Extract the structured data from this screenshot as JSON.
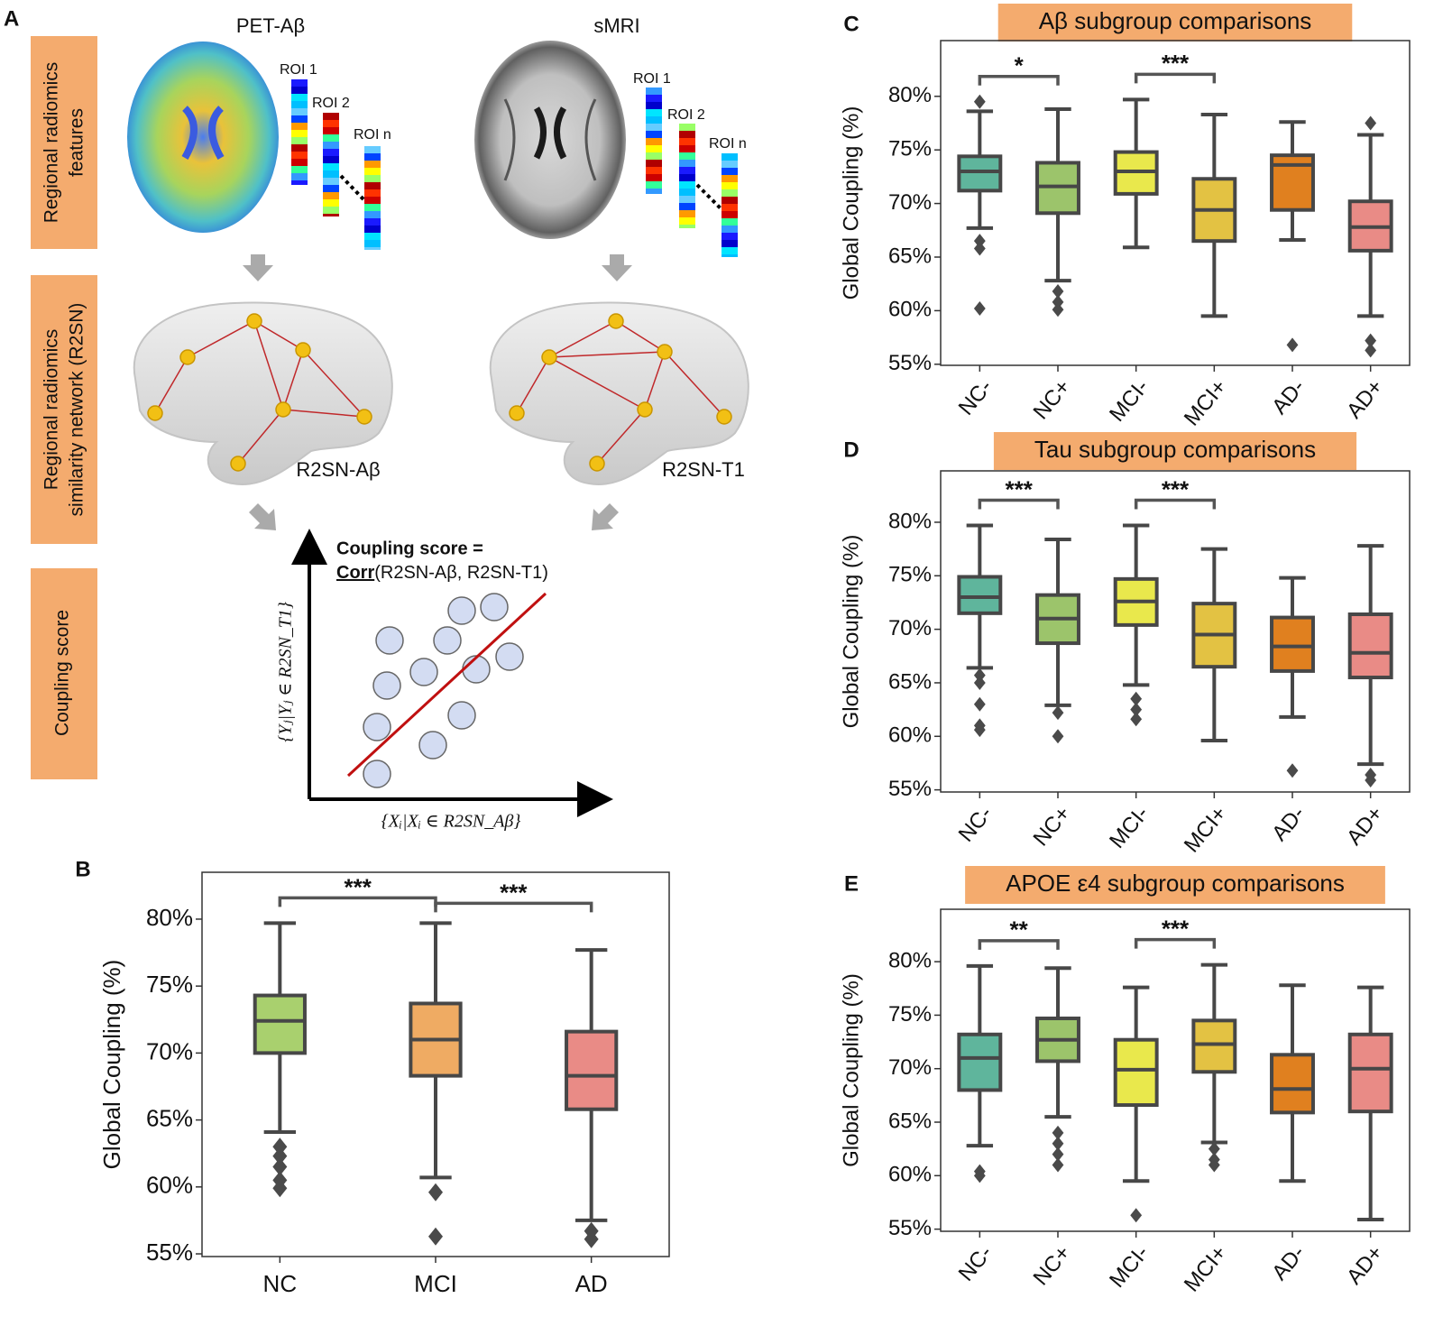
{
  "panel_a": {
    "letter": "A",
    "row_labels": [
      [
        "Regional radiomics",
        "features"
      ],
      [
        "Regional radiomics",
        "similarity network (R2SN)"
      ],
      [
        "Coupling score"
      ]
    ],
    "modalities": [
      "PET-Aβ",
      "sMRI"
    ],
    "roi_labels": [
      "ROI 1",
      "ROI 2",
      "ROI n"
    ],
    "networks": [
      "R2SN-Aβ",
      "R2SN-T1"
    ],
    "formula_title": "Coupling score =",
    "formula_name": "Corr",
    "formula_args": "(R2SN-Aβ, R2SN-T1)",
    "y_axis_label": "{Yⱼ|Yⱼ ∈ R2SN_T1}",
    "x_axis_label": "{Xᵢ|Xᵢ ∈ R2SN_Aβ}"
  },
  "chart_data": [
    {
      "type": "box",
      "panel": "B",
      "ylabel": "Global Coupling (%)",
      "categories": [
        "NC",
        "MCI",
        "AD"
      ],
      "colors": [
        "#a9d06e",
        "#efab63",
        "#e98b86"
      ],
      "boxes": [
        {
          "low": 64.1,
          "q1": 70.0,
          "median": 72.4,
          "q3": 74.3,
          "high": 79.7,
          "outliers": [
            63.0,
            62.3,
            61.5,
            60.5,
            59.9
          ]
        },
        {
          "low": 60.7,
          "q1": 68.3,
          "median": 71.0,
          "q3": 73.7,
          "high": 79.7,
          "outliers": [
            59.6,
            56.3
          ]
        },
        {
          "low": 57.5,
          "q1": 65.8,
          "median": 68.3,
          "q3": 71.6,
          "high": 77.7,
          "outliers": [
            56.7,
            56.1
          ]
        }
      ],
      "significance": [
        {
          "between": [
            "NC",
            "MCI"
          ],
          "label": "***"
        },
        {
          "between": [
            "MCI",
            "AD"
          ],
          "label": "***"
        }
      ],
      "ylim": [
        54.8,
        83.5
      ],
      "yticks": [
        {
          "value": 55,
          "label": "55%"
        },
        {
          "value": 60,
          "label": "60%"
        },
        {
          "value": 65,
          "label": "65%"
        },
        {
          "value": 70,
          "label": "70%"
        },
        {
          "value": 75,
          "label": "75%"
        },
        {
          "value": 80,
          "label": "80%"
        }
      ]
    },
    {
      "type": "box",
      "panel": "C",
      "title": "Aβ subgroup comparisons",
      "ylabel": "Global Coupling (%)",
      "categories": [
        "NC-",
        "NC+",
        "MCI-",
        "MCI+",
        "AD-",
        "AD+"
      ],
      "colors": [
        "#5fb59c",
        "#9cc46b",
        "#e9e84c",
        "#e3c243",
        "#e0801f",
        "#e98b86"
      ],
      "boxes": [
        {
          "low": 67.7,
          "q1": 71.2,
          "median": 73.0,
          "q3": 74.4,
          "high": 78.6,
          "outliers": [
            79.5,
            66.5,
            65.8,
            60.2
          ]
        },
        {
          "low": 62.8,
          "q1": 69.1,
          "median": 71.6,
          "q3": 73.8,
          "high": 78.8,
          "outliers": [
            61.8,
            60.8,
            60.1
          ]
        },
        {
          "low": 65.9,
          "q1": 70.9,
          "median": 73.0,
          "q3": 74.8,
          "high": 79.7,
          "outliers": []
        },
        {
          "low": 59.5,
          "q1": 66.5,
          "median": 69.4,
          "q3": 72.3,
          "high": 78.3,
          "outliers": []
        },
        {
          "low": 66.6,
          "q1": 69.4,
          "median": 73.6,
          "q3": 74.5,
          "high": 77.6,
          "outliers": [
            56.8
          ]
        },
        {
          "low": 59.5,
          "q1": 65.6,
          "median": 67.8,
          "q3": 70.2,
          "high": 76.4,
          "outliers": [
            77.5,
            57.2,
            56.3
          ]
        }
      ],
      "significance": [
        {
          "between": [
            "NC-",
            "NC+"
          ],
          "label": "*"
        },
        {
          "between": [
            "MCI-",
            "MCI+"
          ],
          "label": "***"
        }
      ],
      "ylim": [
        54.9,
        85.2
      ],
      "yticks": [
        {
          "value": 55,
          "label": "55%"
        },
        {
          "value": 60,
          "label": "60%"
        },
        {
          "value": 65,
          "label": "65%"
        },
        {
          "value": 70,
          "label": "70%"
        },
        {
          "value": 75,
          "label": "75%"
        },
        {
          "value": 80,
          "label": "80%"
        }
      ]
    },
    {
      "type": "box",
      "panel": "D",
      "title": "Tau subgroup comparisons",
      "ylabel": "Global Coupling (%)",
      "categories": [
        "NC-",
        "NC+",
        "MCI-",
        "MCI+",
        "AD-",
        "AD+"
      ],
      "colors": [
        "#5fb59c",
        "#9cc46b",
        "#e9e84c",
        "#e3c243",
        "#e0801f",
        "#e98b86"
      ],
      "boxes": [
        {
          "low": 66.4,
          "q1": 71.5,
          "median": 73.0,
          "q3": 74.9,
          "high": 79.7,
          "outliers": [
            65.7,
            65.0,
            63.0,
            61.0,
            60.6
          ]
        },
        {
          "low": 62.9,
          "q1": 68.7,
          "median": 71.0,
          "q3": 73.2,
          "high": 78.4,
          "outliers": [
            62.2,
            60.0
          ]
        },
        {
          "low": 64.8,
          "q1": 70.4,
          "median": 72.6,
          "q3": 74.7,
          "high": 79.7,
          "outliers": [
            63.5,
            62.5,
            61.6
          ]
        },
        {
          "low": 59.6,
          "q1": 66.5,
          "median": 69.5,
          "q3": 72.4,
          "high": 77.5,
          "outliers": []
        },
        {
          "low": 61.8,
          "q1": 66.1,
          "median": 68.4,
          "q3": 71.1,
          "high": 74.8,
          "outliers": [
            56.8
          ]
        },
        {
          "low": 57.4,
          "q1": 65.5,
          "median": 67.8,
          "q3": 71.4,
          "high": 77.8,
          "outliers": [
            56.4,
            55.9
          ]
        }
      ],
      "significance": [
        {
          "between": [
            "NC-",
            "NC+"
          ],
          "label": "***"
        },
        {
          "between": [
            "MCI-",
            "MCI+"
          ],
          "label": "***"
        }
      ],
      "ylim": [
        54.8,
        84.8
      ],
      "yticks": [
        {
          "value": 55,
          "label": "55%"
        },
        {
          "value": 60,
          "label": "60%"
        },
        {
          "value": 65,
          "label": "65%"
        },
        {
          "value": 70,
          "label": "70%"
        },
        {
          "value": 75,
          "label": "75%"
        },
        {
          "value": 80,
          "label": "80%"
        }
      ]
    },
    {
      "type": "box",
      "panel": "E",
      "title": "APOE ε4 subgroup comparisons",
      "ylabel": "Global Coupling (%)",
      "categories": [
        "NC-",
        "NC+",
        "MCI-",
        "MCI+",
        "AD-",
        "AD+"
      ],
      "colors": [
        "#5fb59c",
        "#9cc46b",
        "#e9e84c",
        "#e3c243",
        "#e0801f",
        "#e98b86"
      ],
      "boxes": [
        {
          "low": 62.8,
          "q1": 68.0,
          "median": 71.0,
          "q3": 73.2,
          "high": 79.6,
          "outliers": [
            60.4,
            60.0
          ]
        },
        {
          "low": 65.5,
          "q1": 70.7,
          "median": 72.7,
          "q3": 74.7,
          "high": 79.4,
          "outliers": [
            64.0,
            63.0,
            62.0,
            61.0
          ]
        },
        {
          "low": 59.5,
          "q1": 66.6,
          "median": 69.9,
          "q3": 72.7,
          "high": 77.6,
          "outliers": [
            56.3
          ]
        },
        {
          "low": 63.1,
          "q1": 69.7,
          "median": 72.3,
          "q3": 74.5,
          "high": 79.7,
          "outliers": [
            62.5,
            61.5,
            61.0
          ]
        },
        {
          "low": 59.5,
          "q1": 65.9,
          "median": 68.1,
          "q3": 71.3,
          "high": 77.8,
          "outliers": []
        },
        {
          "low": 55.9,
          "q1": 66.0,
          "median": 70.0,
          "q3": 73.2,
          "high": 77.6,
          "outliers": []
        }
      ],
      "significance": [
        {
          "between": [
            "NC-",
            "NC+"
          ],
          "label": "**"
        },
        {
          "between": [
            "MCI-",
            "MCI+"
          ],
          "label": "***"
        }
      ],
      "ylim": [
        54.8,
        84.9
      ],
      "yticks": [
        {
          "value": 55,
          "label": "55%"
        },
        {
          "value": 60,
          "label": "60%"
        },
        {
          "value": 65,
          "label": "65%"
        },
        {
          "value": 70,
          "label": "70%"
        },
        {
          "value": 75,
          "label": "75%"
        },
        {
          "value": 80,
          "label": "80%"
        }
      ]
    }
  ]
}
